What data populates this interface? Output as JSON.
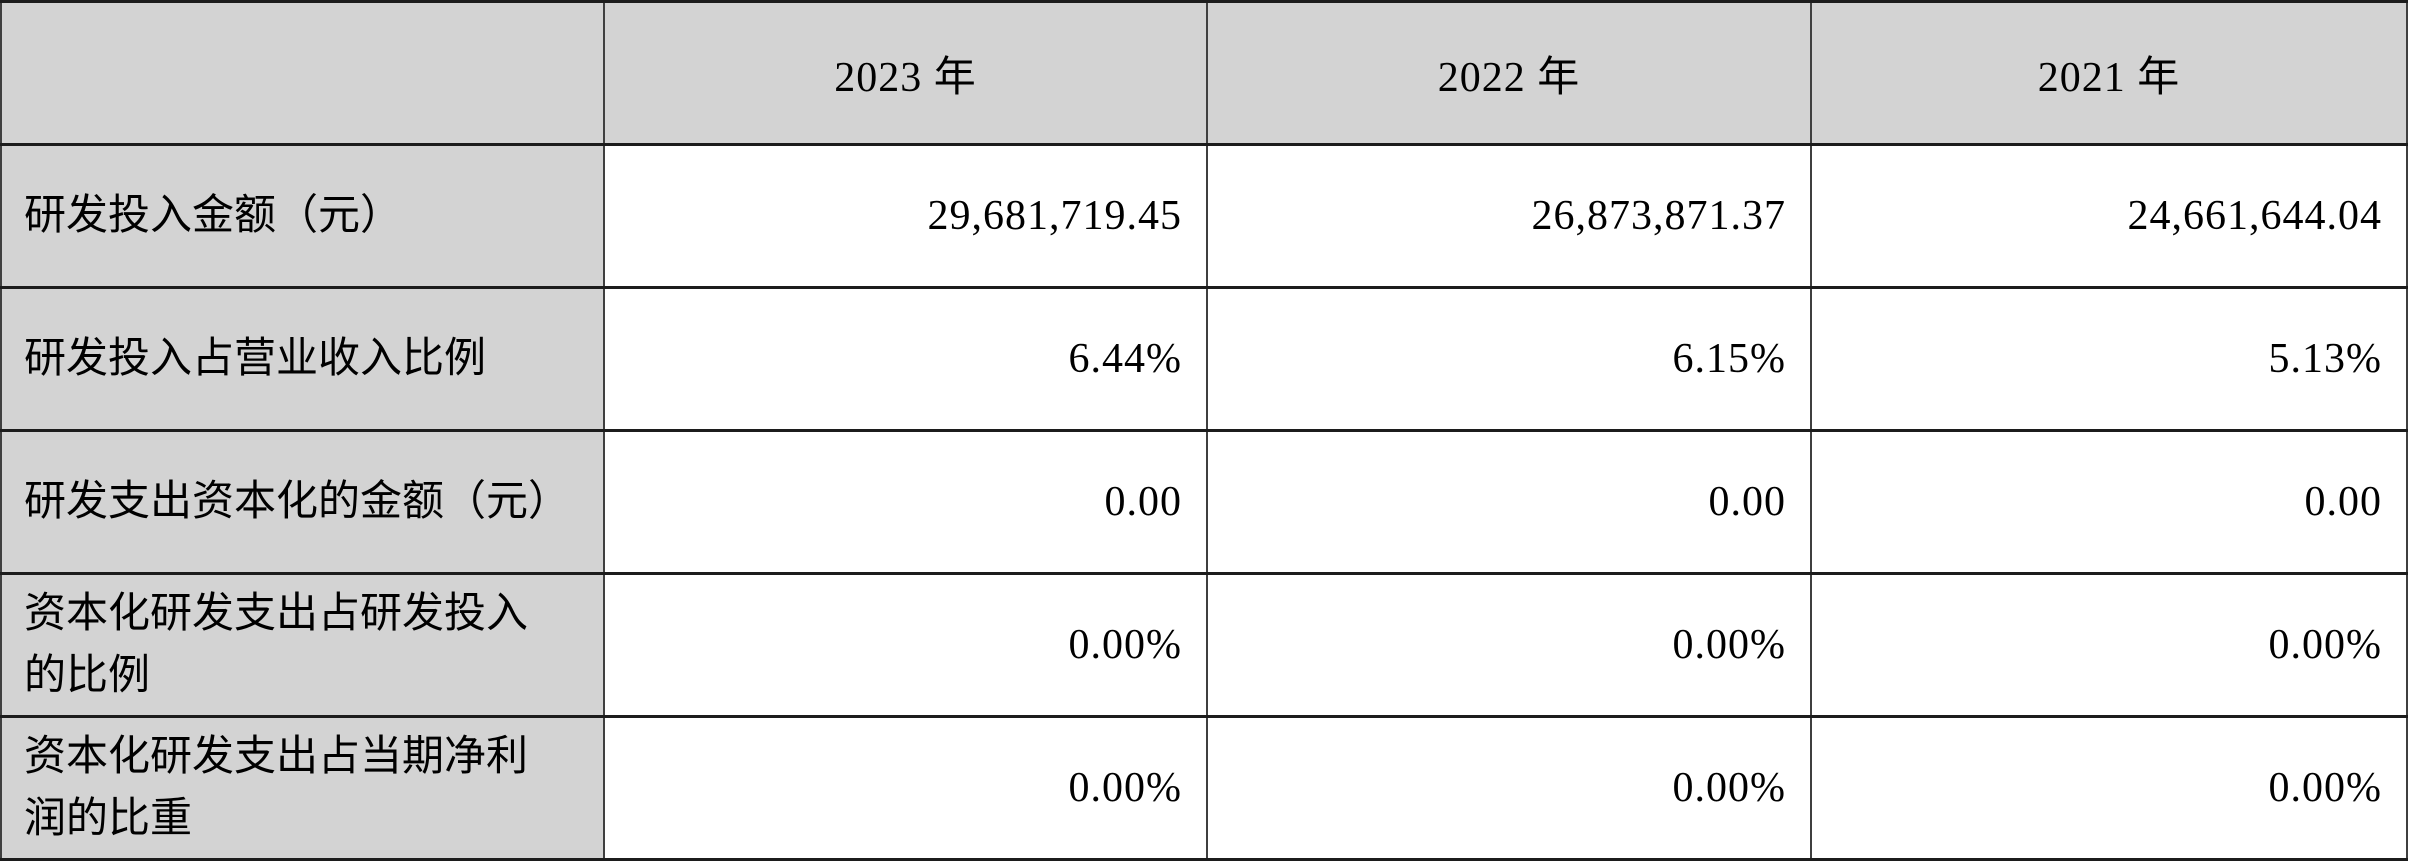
{
  "table": {
    "corner_label": "",
    "year_headers": [
      "2023 年",
      "2022 年",
      "2021 年"
    ],
    "rows": [
      {
        "label": "研发投入金额（元）",
        "values": [
          "29,681,719.45",
          "26,873,871.37",
          "24,661,644.04"
        ]
      },
      {
        "label": "研发投入占营业收入比例",
        "values": [
          "6.44%",
          "6.15%",
          "5.13%"
        ]
      },
      {
        "label": "研发支出资本化的金额（元）",
        "values": [
          "0.00",
          "0.00",
          "0.00"
        ]
      },
      {
        "label": "资本化研发支出占研发投入的比例",
        "values": [
          "0.00%",
          "0.00%",
          "0.00%"
        ]
      },
      {
        "label": "资本化研发支出占当期净利润的比重",
        "values": [
          "0.00%",
          "0.00%",
          "0.00%"
        ]
      }
    ],
    "colors": {
      "header_bg": "#d3d3d3",
      "label_bg": "#d3d3d3",
      "cell_bg": "#ffffff",
      "border_horizontal": "#1c1c1c",
      "border_vertical": "#3f3f3f",
      "text": "#000000"
    }
  }
}
